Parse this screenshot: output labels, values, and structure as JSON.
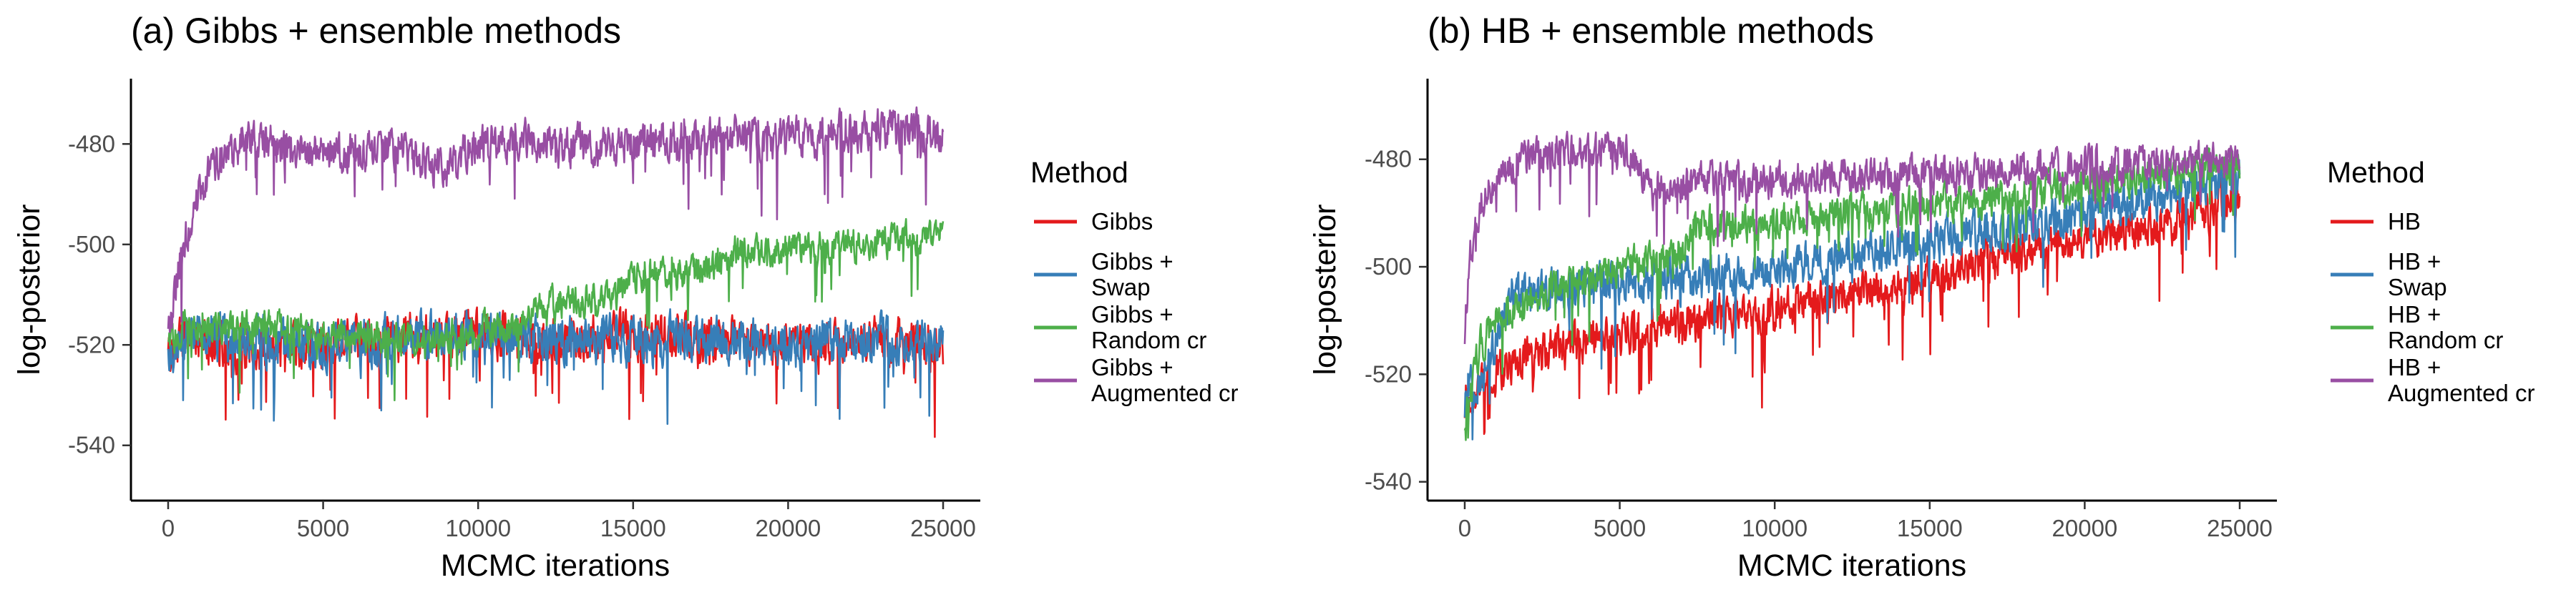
{
  "chart_data": [
    {
      "type": "line",
      "title": "(a) Gibbs + ensemble methods",
      "xlabel": "MCMC iterations",
      "ylabel": "log-posterior",
      "xlim": [
        -1200,
        26200
      ],
      "ylim": [
        -551,
        -467
      ],
      "xticks": [
        0,
        5000,
        10000,
        15000,
        20000,
        25000
      ],
      "yticks": [
        -540,
        -520,
        -500,
        -480
      ],
      "grid": false,
      "legend": {
        "title": "Method",
        "position": "right"
      },
      "series": [
        {
          "name": "Gibbs",
          "color": "#e41a1c",
          "x": [
            0,
            500,
            1000,
            2500,
            5000,
            7500,
            10000,
            12500,
            15000,
            17500,
            19000,
            20000,
            22500,
            25000
          ],
          "y": [
            -522,
            -518,
            -519,
            -521,
            -520,
            -519,
            -518,
            -519,
            -518,
            -519,
            -520,
            -520,
            -519,
            -520
          ],
          "spread": 7
        },
        {
          "name": "Gibbs +\nSwap",
          "color": "#377eb8",
          "x": [
            0,
            500,
            1000,
            2500,
            5000,
            7500,
            10000,
            12500,
            15000,
            17500,
            20000,
            22500,
            25000
          ],
          "y": [
            -522,
            -518,
            -519,
            -519,
            -520,
            -519,
            -518,
            -519,
            -519,
            -519,
            -520,
            -519,
            -519
          ],
          "spread": 7
        },
        {
          "name": "Gibbs +\nRandom cr",
          "color": "#4daf4a",
          "x": [
            0,
            500,
            1000,
            3000,
            5000,
            7500,
            10000,
            11000,
            12000,
            14500,
            15000,
            17500,
            18000,
            20000,
            22500,
            25000
          ],
          "y": [
            -520,
            -516,
            -517,
            -516,
            -518,
            -519,
            -517,
            -517,
            -512,
            -510,
            -506,
            -505,
            -502,
            -501,
            -500,
            -498
          ],
          "spread": 5
        },
        {
          "name": "Gibbs +\nAugmented cr",
          "color": "#984ea3",
          "x": [
            0,
            300,
            600,
            1000,
            1500,
            2500,
            5000,
            7500,
            9000,
            10000,
            12500,
            15000,
            17500,
            20000,
            22500,
            25000
          ],
          "y": [
            -518,
            -506,
            -498,
            -490,
            -484,
            -479,
            -482,
            -481,
            -485,
            -479,
            -480,
            -480,
            -479,
            -479,
            -477,
            -478
          ],
          "spread": 6
        }
      ]
    },
    {
      "type": "line",
      "title": "(b) HB + ensemble methods",
      "xlabel": "MCMC iterations",
      "ylabel": "log-posterior",
      "xlim": [
        -1200,
        26200
      ],
      "ylim": [
        -543.5,
        -465
      ],
      "xticks": [
        0,
        5000,
        10000,
        15000,
        20000,
        25000
      ],
      "yticks": [
        -540,
        -520,
        -500,
        -480
      ],
      "grid": false,
      "legend": {
        "title": "Method",
        "position": "right"
      },
      "series": [
        {
          "name": "HB",
          "color": "#e41a1c",
          "x": [
            0,
            500,
            1000,
            2500,
            5000,
            7500,
            10000,
            12500,
            15000,
            17500,
            20000,
            22500,
            25000
          ],
          "y": [
            -525,
            -522,
            -520,
            -516,
            -513,
            -510,
            -508,
            -505,
            -502,
            -498,
            -495,
            -492,
            -488
          ],
          "spread": 6
        },
        {
          "name": "HB +\nSwap",
          "color": "#377eb8",
          "x": [
            0,
            500,
            1000,
            1500,
            2500,
            5000,
            7500,
            10000,
            12500,
            15000,
            17500,
            20000,
            22500,
            25000
          ],
          "y": [
            -525,
            -520,
            -515,
            -505,
            -505,
            -503,
            -502,
            -500,
            -498,
            -495,
            -493,
            -490,
            -487,
            -484
          ],
          "spread": 6
        },
        {
          "name": "HB +\nRandom cr",
          "color": "#4daf4a",
          "x": [
            0,
            500,
            1000,
            2500,
            5000,
            7000,
            7500,
            10000,
            12500,
            15000,
            17500,
            20000,
            22500,
            25000
          ],
          "y": [
            -528,
            -515,
            -510,
            -505,
            -500,
            -497,
            -492,
            -492,
            -490,
            -488,
            -487,
            -485,
            -483,
            -481
          ],
          "spread": 5
        },
        {
          "name": "HB +\nAugmented cr",
          "color": "#984ea3",
          "x": [
            0,
            200,
            500,
            1000,
            2000,
            3000,
            5000,
            5500,
            6000,
            7500,
            10000,
            12500,
            15000,
            17500,
            20000,
            22500,
            25000
          ],
          "y": [
            -512,
            -497,
            -488,
            -484,
            -480,
            -478,
            -478,
            -480,
            -486,
            -484,
            -484,
            -483,
            -483,
            -482,
            -481,
            -481,
            -480
          ],
          "spread": 5
        }
      ]
    }
  ]
}
